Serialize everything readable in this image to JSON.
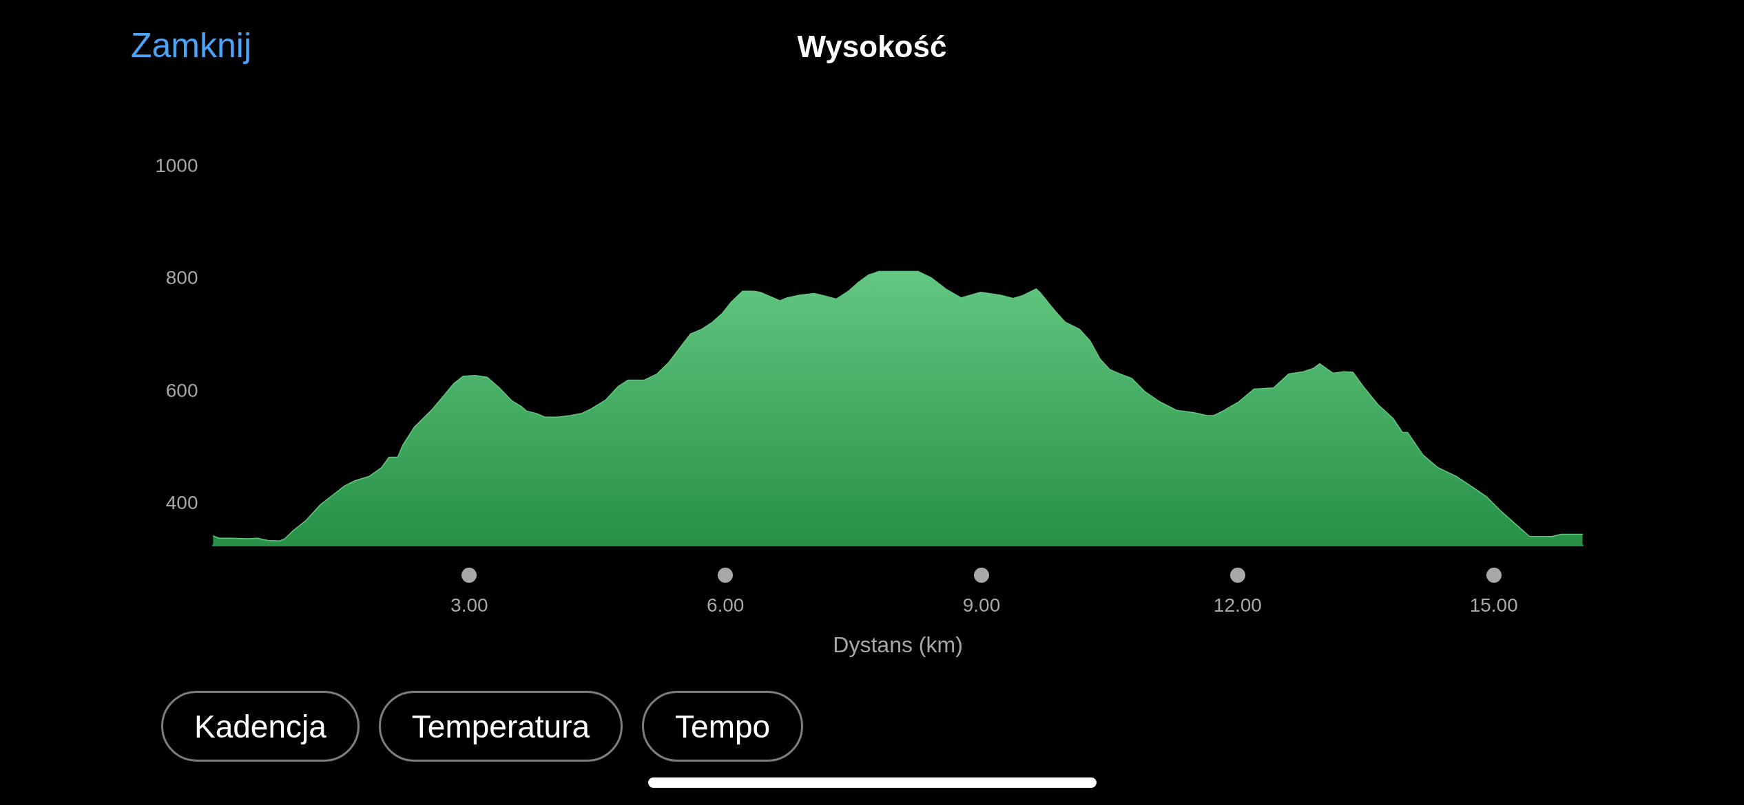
{
  "chart_data": {
    "type": "area",
    "title": "Wysokość",
    "xlabel": "Dystans (km)",
    "annotations": [
      "Zamknij",
      "Kadencja",
      "Temperatura",
      "Tempo"
    ],
    "x": [
      0,
      0.07,
      0.19,
      0.41,
      0.52,
      0.64,
      0.78,
      0.84,
      0.92,
      1.09,
      1.26,
      1.37,
      1.54,
      1.66,
      1.83,
      1.97,
      2.06,
      2.16,
      2.22,
      2.36,
      2.56,
      2.7,
      2.82,
      2.93,
      3.07,
      3.21,
      3.36,
      3.5,
      3.61,
      3.67,
      3.78,
      3.89,
      4.04,
      4.18,
      4.32,
      4.43,
      4.6,
      4.74,
      4.86,
      5.05,
      5.2,
      5.34,
      5.45,
      5.59,
      5.73,
      5.85,
      5.96,
      6.07,
      6.2,
      6.33,
      6.41,
      6.5,
      6.64,
      6.72,
      6.87,
      7.04,
      7.15,
      7.3,
      7.45,
      7.56,
      7.68,
      7.8,
      8.06,
      8.26,
      8.41,
      8.58,
      8.76,
      8.99,
      9.22,
      9.37,
      9.48,
      9.64,
      9.69,
      9.86,
      9.98,
      10.15,
      10.27,
      10.39,
      10.5,
      10.62,
      10.76,
      10.91,
      11.08,
      11.29,
      11.49,
      11.64,
      11.72,
      11.84,
      12.01,
      12.19,
      12.42,
      12.6,
      12.77,
      12.89,
      12.96,
      13.12,
      13.24,
      13.35,
      13.47,
      13.64,
      13.82,
      13.93,
      13.99,
      14.17,
      14.34,
      14.57,
      14.75,
      14.92,
      15.07,
      15.27,
      15.42,
      15.68,
      15.79,
      16.04
    ],
    "values": [
      341,
      337,
      337,
      336,
      337,
      333,
      332,
      336,
      348,
      369,
      397,
      410,
      430,
      439,
      447,
      462,
      481,
      481,
      502,
      535,
      565,
      590,
      612,
      625,
      626,
      623,
      603,
      581,
      571,
      563,
      559,
      552,
      552,
      555,
      559,
      567,
      583,
      606,
      618,
      618,
      629,
      650,
      672,
      700,
      709,
      721,
      736,
      757,
      776,
      776,
      774,
      768,
      759,
      764,
      769,
      772,
      768,
      762,
      777,
      792,
      805,
      811,
      811,
      811,
      800,
      780,
      764,
      774,
      769,
      763,
      768,
      780,
      773,
      741,
      721,
      708,
      688,
      655,
      637,
      629,
      621,
      598,
      580,
      564,
      560,
      555,
      555,
      564,
      579,
      602,
      604,
      629,
      633,
      639,
      647,
      630,
      633,
      632,
      607,
      575,
      550,
      525,
      525,
      485,
      463,
      446,
      428,
      410,
      387,
      360,
      340,
      340,
      344,
      344
    ],
    "color": "#2fb457",
    "xlim": [
      0,
      16.04
    ],
    "ylim": [
      325,
      1000
    ],
    "xticks": [
      {
        "value": 3,
        "label": "3.00"
      },
      {
        "value": 6,
        "label": "6.00"
      },
      {
        "value": 9,
        "label": "9.00"
      },
      {
        "value": 12,
        "label": "12.00"
      },
      {
        "value": 15,
        "label": "15.00"
      }
    ],
    "yticks": [
      400,
      600,
      800,
      1000
    ]
  }
}
